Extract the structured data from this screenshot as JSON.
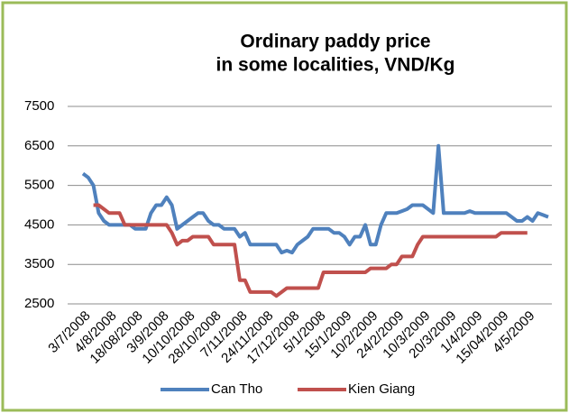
{
  "chart_data": {
    "type": "line",
    "title": [
      "Ordinary  paddy price",
      "in some localities, VND/Kg"
    ],
    "categories": [
      "3/7/2008",
      null,
      null,
      null,
      null,
      "4/8/2008",
      null,
      null,
      null,
      null,
      "18/08/2008",
      null,
      null,
      null,
      null,
      "3/9/2008",
      null,
      null,
      null,
      null,
      "10/10/2008",
      null,
      null,
      null,
      null,
      "28/10/2008",
      null,
      null,
      null,
      null,
      "7/11/2008",
      null,
      null,
      null,
      null,
      "24/11/2008",
      null,
      null,
      null,
      null,
      "17/12/2008",
      null,
      null,
      null,
      null,
      "5/1/2008",
      null,
      null,
      null,
      null,
      "15/1/2009",
      null,
      null,
      null,
      null,
      "10/2/2009",
      null,
      null,
      null,
      null,
      "24/2/2009",
      null,
      null,
      null,
      null,
      "10/3/2009",
      null,
      null,
      null,
      null,
      "20/3/2009",
      null,
      null,
      null,
      null,
      "1/4/2009",
      null,
      null,
      null,
      null,
      "15/04/2009",
      null,
      null,
      null,
      null,
      "4/5/2009",
      null,
      null,
      null,
      null
    ],
    "series": [
      {
        "name": "Can Tho",
        "color": "#4f81bd",
        "values": [
          5800,
          5700,
          5500,
          4800,
          4600,
          4500,
          4500,
          4500,
          4500,
          4500,
          4400,
          4400,
          4400,
          4800,
          5000,
          5000,
          5200,
          5000,
          4400,
          4500,
          4600,
          4700,
          4800,
          4800,
          4600,
          4500,
          4500,
          4400,
          4400,
          4400,
          4200,
          4300,
          4000,
          4000,
          4000,
          4000,
          4000,
          4000,
          3800,
          3850,
          3800,
          4000,
          4100,
          4200,
          4400,
          4400,
          4400,
          4400,
          4300,
          4300,
          4200,
          4000,
          4200,
          4200,
          4500,
          4000,
          4000,
          4500,
          4800,
          4800,
          4800,
          4850,
          4900,
          5000,
          5000,
          5000,
          4900,
          4800,
          6500,
          4800,
          4800,
          4800,
          4800,
          4800,
          4850,
          4800,
          4800,
          4800,
          4800,
          4800,
          4800,
          4800,
          4700,
          4600,
          4600,
          4700,
          4600,
          4800,
          4750,
          4700
        ]
      },
      {
        "name": "Kien Giang",
        "color": "#c0504d",
        "values": [
          null,
          null,
          5000,
          5000,
          4900,
          4800,
          4800,
          4800,
          4500,
          4500,
          4500,
          4500,
          4500,
          4500,
          4500,
          4500,
          4500,
          4300,
          4000,
          4100,
          4100,
          4200,
          4200,
          4200,
          4200,
          4000,
          4000,
          4000,
          4000,
          4000,
          3100,
          3100,
          2800,
          2800,
          2800,
          2800,
          2800,
          2700,
          2800,
          2900,
          2900,
          2900,
          2900,
          2900,
          2900,
          2900,
          3300,
          3300,
          3300,
          3300,
          3300,
          3300,
          3300,
          3300,
          3300,
          3400,
          3400,
          3400,
          3400,
          3500,
          3500,
          3700,
          3700,
          3700,
          4000,
          4200,
          4200,
          4200,
          4200,
          4200,
          4200,
          4200,
          4200,
          4200,
          4200,
          4200,
          4200,
          4200,
          4200,
          4200,
          4300,
          4300,
          4300,
          4300,
          4300,
          4300,
          null,
          null,
          null,
          null
        ]
      }
    ],
    "ylim": [
      2500,
      7500
    ],
    "yticks": [
      2500,
      3500,
      4500,
      5500,
      6500,
      7500
    ],
    "grid": true,
    "legend": "bottom"
  }
}
